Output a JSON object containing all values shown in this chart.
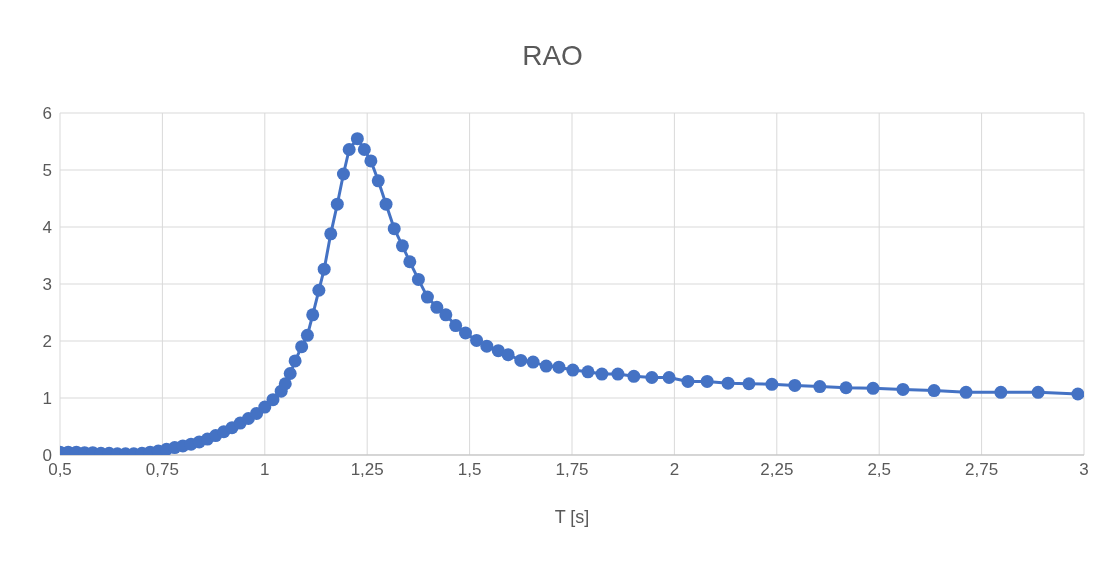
{
  "chart_data": {
    "type": "line",
    "title": "RAO",
    "xlabel": "T [s]",
    "x": [
      0.5,
      0.52,
      0.54,
      0.56,
      0.58,
      0.6,
      0.62,
      0.64,
      0.66,
      0.68,
      0.7,
      0.72,
      0.74,
      0.76,
      0.78,
      0.8,
      0.82,
      0.84,
      0.86,
      0.88,
      0.9,
      0.92,
      0.94,
      0.96,
      0.98,
      1.0,
      1.02,
      1.04,
      1.05,
      1.062,
      1.074,
      1.09,
      1.104,
      1.117,
      1.132,
      1.145,
      1.161,
      1.177,
      1.192,
      1.206,
      1.226,
      1.243,
      1.259,
      1.277,
      1.296,
      1.316,
      1.336,
      1.354,
      1.375,
      1.397,
      1.42,
      1.442,
      1.466,
      1.49,
      1.517,
      1.542,
      1.57,
      1.594,
      1.625,
      1.655,
      1.687,
      1.718,
      1.752,
      1.789,
      1.823,
      1.862,
      1.901,
      1.945,
      1.987,
      2.033,
      2.08,
      2.131,
      2.182,
      2.238,
      2.294,
      2.355,
      2.419,
      2.485,
      2.558,
      2.634,
      2.712,
      2.797,
      2.888,
      2.985
    ],
    "series": [
      {
        "color": "#4472c4",
        "values": [
          0.05,
          0.05,
          0.05,
          0.04,
          0.04,
          0.03,
          0.03,
          0.02,
          0.02,
          0.02,
          0.03,
          0.05,
          0.07,
          0.1,
          0.13,
          0.16,
          0.19,
          0.23,
          0.28,
          0.34,
          0.41,
          0.48,
          0.56,
          0.64,
          0.73,
          0.84,
          0.97,
          1.12,
          1.25,
          1.43,
          1.65,
          1.9,
          2.1,
          2.46,
          2.89,
          3.26,
          3.88,
          4.4,
          4.93,
          5.36,
          5.55,
          5.36,
          5.16,
          4.81,
          4.4,
          3.97,
          3.67,
          3.39,
          3.08,
          2.77,
          2.59,
          2.46,
          2.27,
          2.14,
          2.01,
          1.91,
          1.83,
          1.76,
          1.66,
          1.63,
          1.56,
          1.54,
          1.49,
          1.46,
          1.42,
          1.42,
          1.38,
          1.36,
          1.36,
          1.29,
          1.29,
          1.26,
          1.25,
          1.24,
          1.22,
          1.2,
          1.18,
          1.17,
          1.15,
          1.13,
          1.1,
          1.1,
          1.1,
          1.07
        ]
      }
    ],
    "xlim": [
      0.5,
      3
    ],
    "xticks": [
      {
        "value": 0.5,
        "label": "0,5"
      },
      {
        "value": 0.75,
        "label": "0,75"
      },
      1,
      {
        "value": 1.25,
        "label": "1,25"
      },
      {
        "value": 1.5,
        "label": "1,5"
      },
      {
        "value": 1.75,
        "label": "1,75"
      },
      2,
      {
        "value": 2.25,
        "label": "2,25"
      },
      {
        "value": 2.5,
        "label": "2,5"
      },
      {
        "value": 2.75,
        "label": "2,75"
      },
      3
    ],
    "ylim": [
      0,
      6
    ],
    "yticks": [
      0,
      1,
      2,
      3,
      4,
      5,
      6
    ],
    "grid": true,
    "legend": false,
    "marker": "circle",
    "line_style": "solid"
  }
}
